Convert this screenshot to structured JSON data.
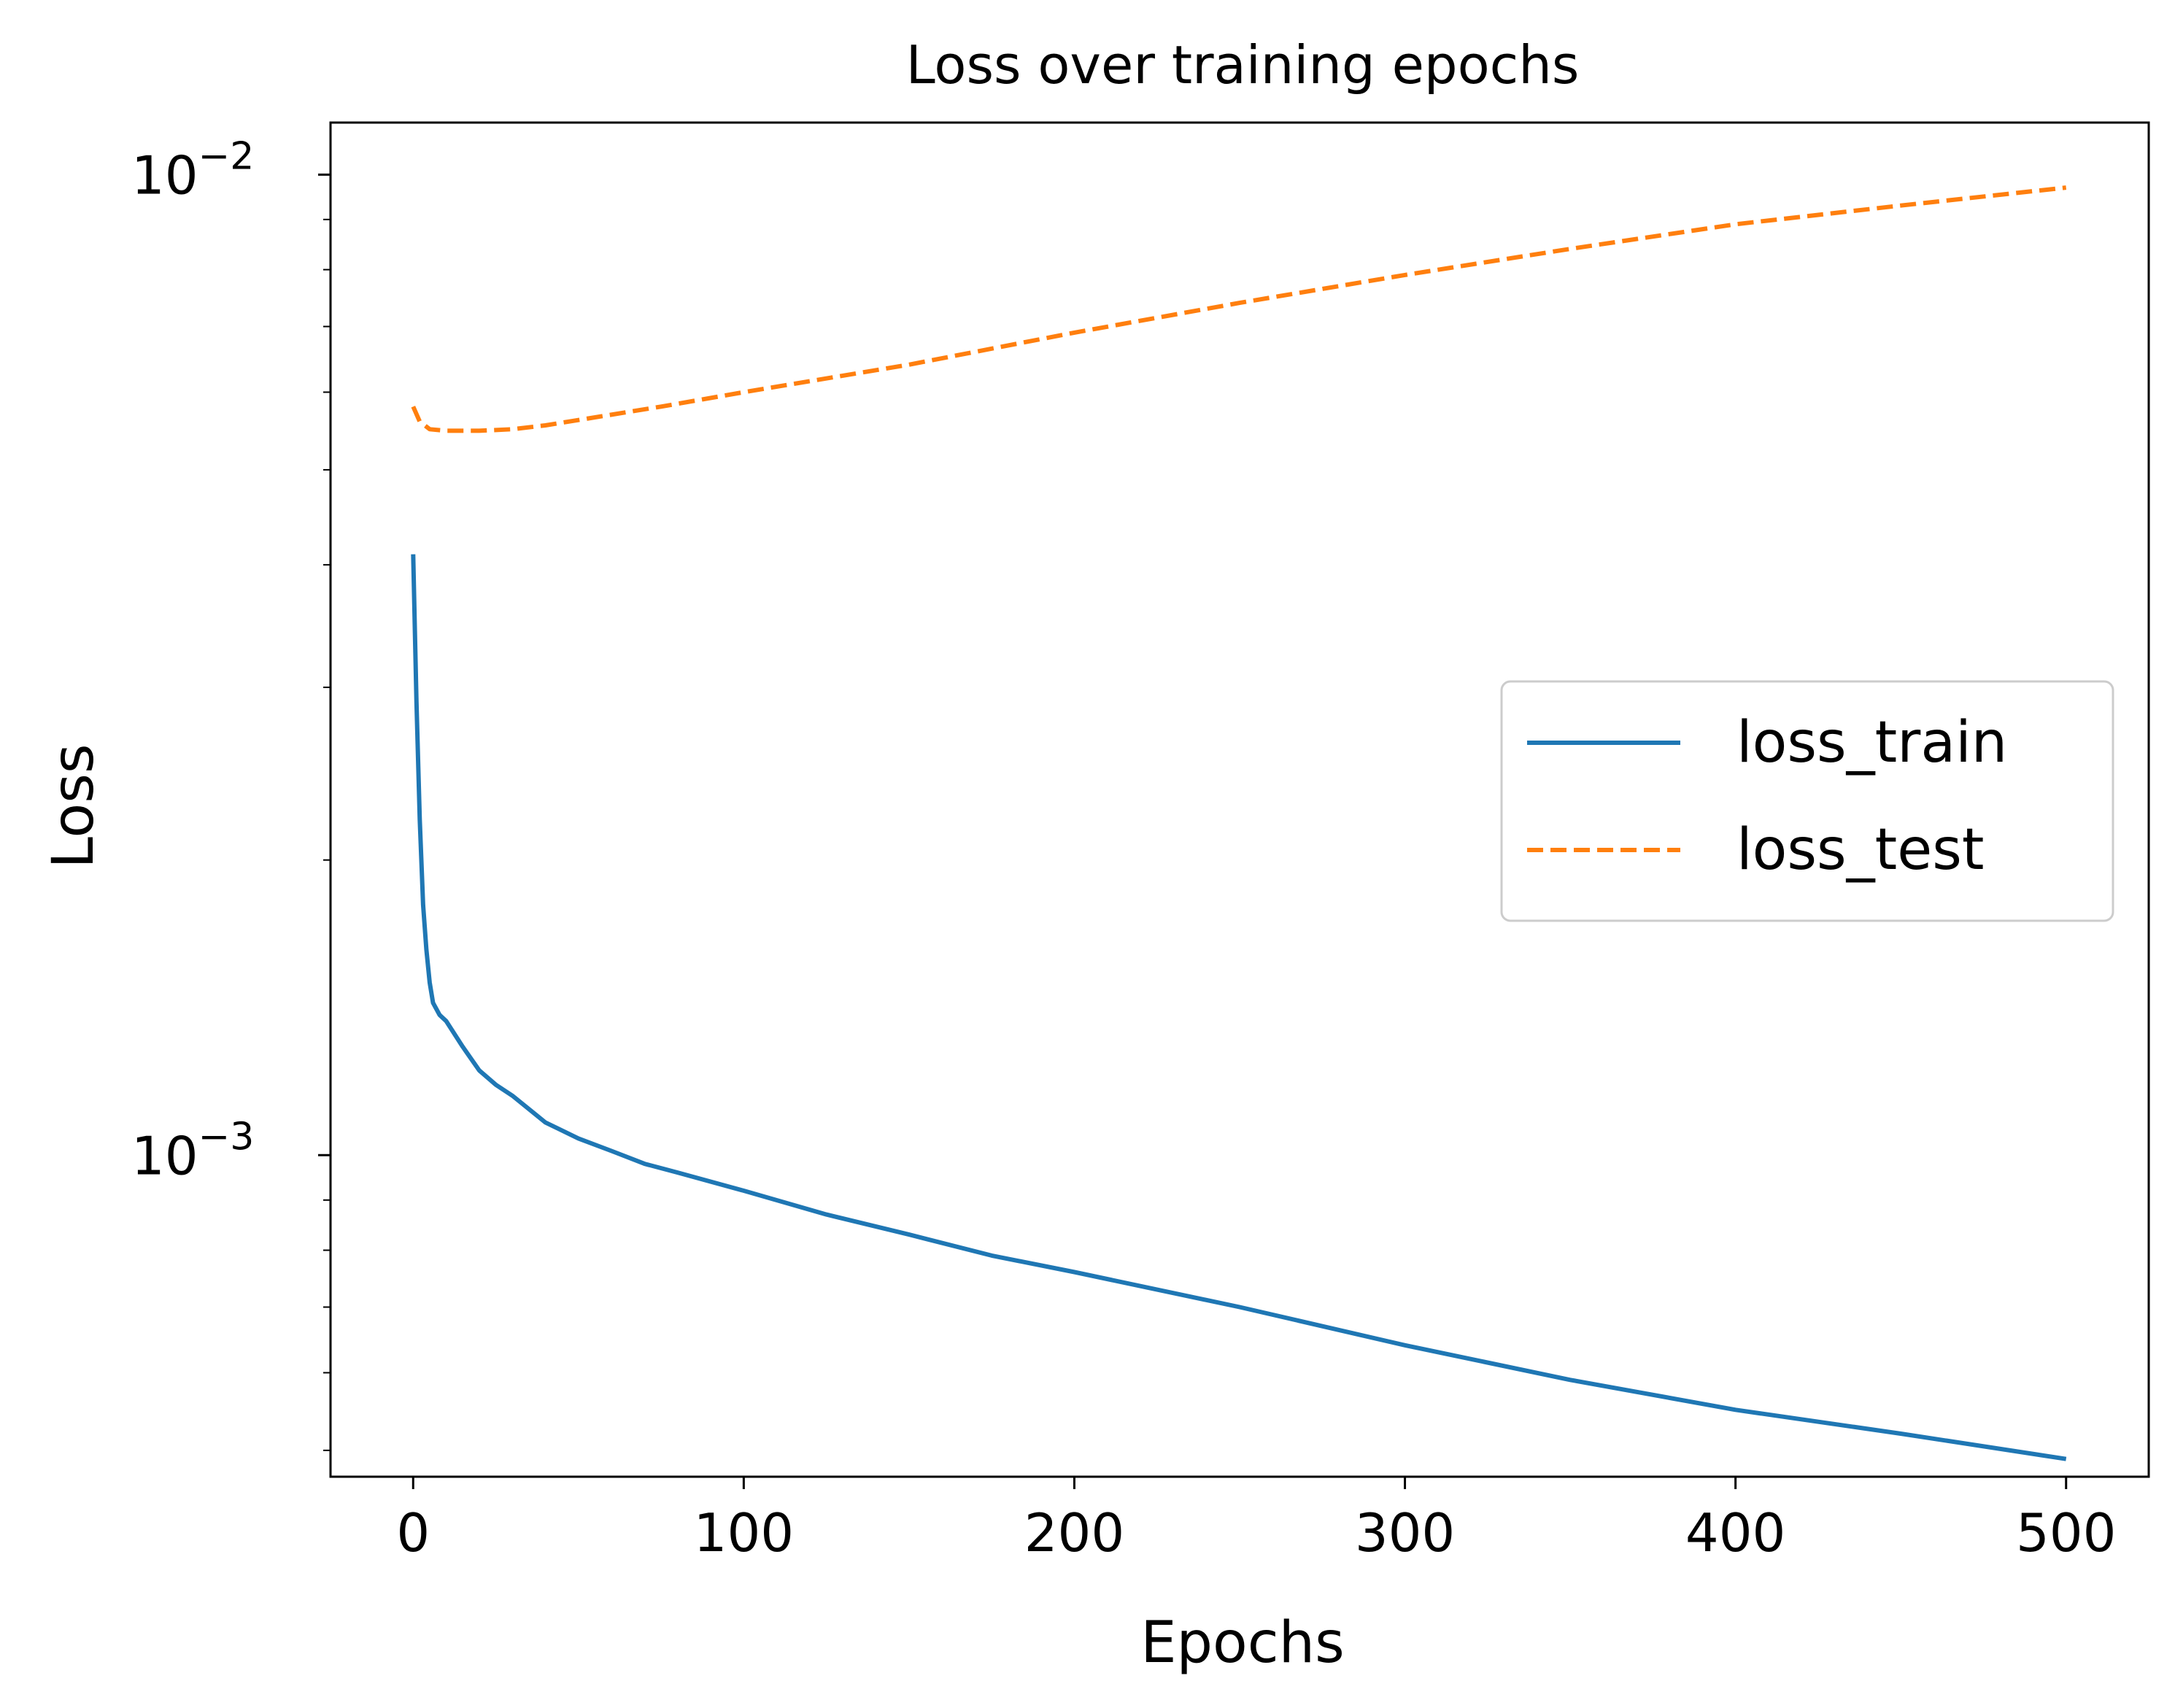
{
  "chart_data": {
    "type": "line",
    "title": "Loss over training epochs",
    "xlabel": "Epochs",
    "ylabel": "Loss",
    "xlim": [
      -25,
      525
    ],
    "ylim": [
      0.00047,
      0.0113
    ],
    "yscale": "log",
    "grid": false,
    "legend_position": "center-right",
    "x_ticks": [
      0,
      100,
      200,
      300,
      400,
      500
    ],
    "x_tick_labels": [
      "0",
      "100",
      "200",
      "300",
      "400",
      "500"
    ],
    "y_major_ticks": [
      {
        "value": 0.01,
        "base": "10",
        "exponent": "−2"
      },
      {
        "value": 0.001,
        "base": "10",
        "exponent": "−3"
      }
    ],
    "y_minor_ticks": [
      0.0005,
      0.0006,
      0.0007,
      0.0008,
      0.0009,
      0.002,
      0.003,
      0.004,
      0.005,
      0.006,
      0.007,
      0.008,
      0.009
    ],
    "series": [
      {
        "name": "loss_train",
        "color": "#1f77b4",
        "linestyle": "solid",
        "x": [
          0,
          1,
          2,
          3,
          4,
          5,
          6,
          8,
          10,
          15,
          20,
          25,
          30,
          40,
          50,
          60,
          70,
          80,
          100,
          125,
          150,
          175,
          200,
          250,
          300,
          350,
          400,
          450,
          500
        ],
        "y": [
          0.0041,
          0.0029,
          0.0022,
          0.0018,
          0.00162,
          0.0015,
          0.00143,
          0.00139,
          0.00137,
          0.00129,
          0.00122,
          0.00118,
          0.00115,
          0.00108,
          0.00104,
          0.00101,
          0.00098,
          0.00096,
          0.00092,
          0.00087,
          0.00083,
          0.00079,
          0.00076,
          0.0007,
          0.00064,
          0.00059,
          0.00055,
          0.00052,
          0.00049
        ]
      },
      {
        "name": "loss_test",
        "color": "#ff7f0e",
        "linestyle": "dashed",
        "x": [
          0,
          2,
          5,
          10,
          20,
          30,
          40,
          50,
          75,
          100,
          150,
          200,
          250,
          300,
          350,
          400,
          450,
          500
        ],
        "y": [
          0.0058,
          0.0056,
          0.0055,
          0.00548,
          0.00548,
          0.0055,
          0.00555,
          0.00562,
          0.0058,
          0.006,
          0.0064,
          0.0069,
          0.0074,
          0.0079,
          0.0084,
          0.0089,
          0.0093,
          0.0097
        ]
      }
    ]
  }
}
